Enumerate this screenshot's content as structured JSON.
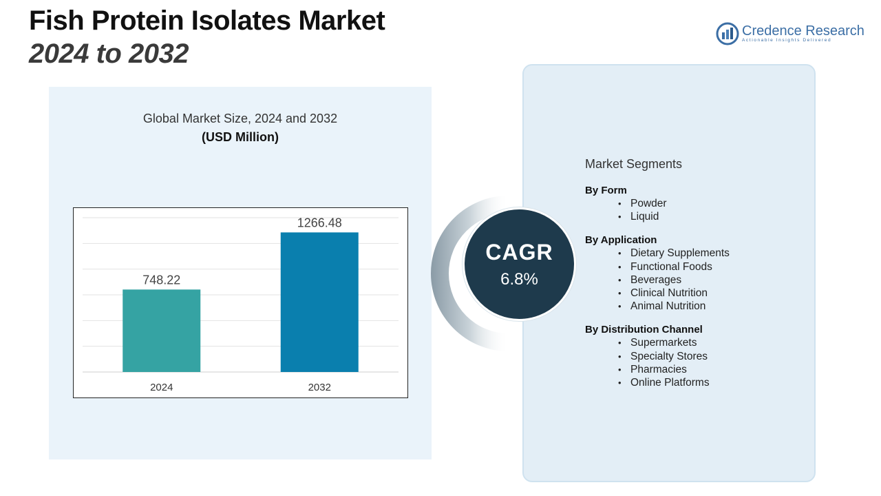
{
  "header": {
    "title_line1": "Fish Protein Isolates Market",
    "title_line2": "2024 to 2032"
  },
  "logo": {
    "brand": "Credence Research",
    "tagline": "Actionable Insights Delivered"
  },
  "chart_panel": {
    "title": "Global Market Size, 2024 and 2032",
    "unit": "(USD Million)"
  },
  "chart_data": {
    "type": "bar",
    "title": "Global Market Size, 2024 and 2032",
    "subtitle": "(USD Million)",
    "categories": [
      "2024",
      "2032"
    ],
    "values": [
      748.22,
      1266.48
    ],
    "value_labels": [
      "748.22",
      "1266.48"
    ],
    "colors": [
      "#35a3a3",
      "#0a7fae"
    ],
    "ylim": [
      0,
      1400
    ],
    "grid": true,
    "xlabel": "",
    "ylabel": ""
  },
  "cagr": {
    "label": "CAGR",
    "value": "6.8%"
  },
  "segments": {
    "heading": "Market Segments",
    "groups": [
      {
        "title": "By Form",
        "items": [
          "Powder",
          "Liquid"
        ]
      },
      {
        "title": "By Application",
        "items": [
          "Dietary Supplements",
          "Functional Foods",
          "Beverages",
          "Clinical Nutrition",
          "Animal Nutrition"
        ]
      },
      {
        "title": "By Distribution Channel",
        "items": [
          "Supermarkets",
          "Specialty Stores",
          "Pharmacies",
          "Online Platforms"
        ]
      }
    ]
  },
  "colors": {
    "panel_bg": "#eaf3fa",
    "cagr_circle": "#1e3a4c",
    "brand_blue": "#3b6ea5"
  }
}
